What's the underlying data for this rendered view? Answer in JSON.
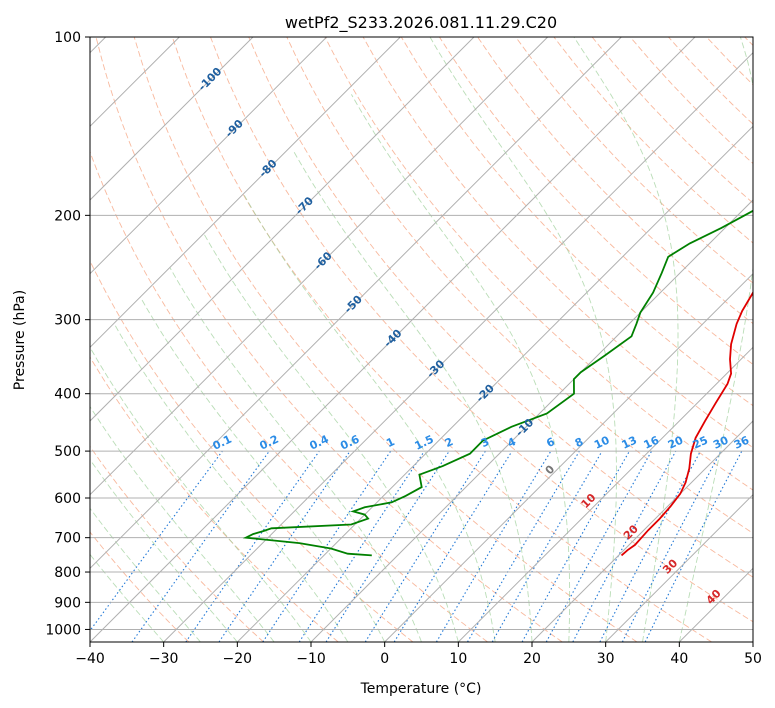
{
  "chart_data": {
    "type": "line",
    "subtype": "skew-T log-P diagram",
    "title": "wetPf2_S233.2026.081.11.29.C20",
    "xlabel": "Temperature (°C)",
    "ylabel": "Pressure (hPa)",
    "xlim": [
      -40,
      50
    ],
    "ylim": [
      1050,
      100
    ],
    "y_scale": "log",
    "x_ticks": [
      -40,
      -30,
      -20,
      -10,
      0,
      10,
      20,
      30,
      40,
      50
    ],
    "y_ticks": [
      100,
      200,
      300,
      400,
      500,
      600,
      700,
      800,
      900,
      1000
    ],
    "grid": true,
    "legend": "none",
    "series": [
      {
        "color": "#e00000",
        "points": [
          [
            20.4,
            750
          ],
          [
            20.5,
            735
          ],
          [
            20.8,
            720
          ],
          [
            20.7,
            700
          ],
          [
            20.6,
            680
          ],
          [
            20.6,
            650
          ],
          [
            20.4,
            620
          ],
          [
            20.0,
            590
          ],
          [
            19.2,
            565
          ],
          [
            17.8,
            535
          ],
          [
            16.0,
            505
          ],
          [
            14.5,
            475
          ],
          [
            13.5,
            445
          ],
          [
            12.5,
            415
          ],
          [
            11.5,
            385
          ],
          [
            10.6,
            370
          ],
          [
            8.5,
            350
          ],
          [
            6.6,
            330
          ],
          [
            4.6,
            305
          ],
          [
            3.6,
            290
          ],
          [
            2.3,
            265
          ],
          [
            1.2,
            240
          ],
          [
            -0.2,
            217
          ],
          [
            -1.8,
            200
          ],
          [
            -1.8,
            193
          ],
          [
            -0.9,
            185
          ],
          [
            0.7,
            176
          ],
          [
            1.0,
            170
          ],
          [
            0.9,
            163
          ],
          [
            1.9,
            152
          ],
          [
            3.6,
            140
          ],
          [
            5.0,
            131
          ],
          [
            5.8,
            125
          ],
          [
            7.2,
            118
          ],
          [
            8.0,
            112
          ],
          [
            9.9,
            100
          ]
        ]
      },
      {
        "color": "#008000",
        "points": [
          [
            -13.5,
            750
          ],
          [
            -17.0,
            745
          ],
          [
            -20.0,
            730
          ],
          [
            -25.0,
            715
          ],
          [
            -33.0,
            700
          ],
          [
            -32.5,
            690
          ],
          [
            -31.5,
            682
          ],
          [
            -30.8,
            675
          ],
          [
            -20.5,
            665
          ],
          [
            -19.0,
            650
          ],
          [
            -20.0,
            640
          ],
          [
            -22.0,
            632
          ],
          [
            -21.0,
            622
          ],
          [
            -18.0,
            610
          ],
          [
            -17.0,
            595
          ],
          [
            -16.0,
            575
          ],
          [
            -18.0,
            548
          ],
          [
            -16.0,
            530
          ],
          [
            -14.0,
            505
          ],
          [
            -14.0,
            480
          ],
          [
            -12.0,
            455
          ],
          [
            -9.0,
            432
          ],
          [
            -8.0,
            400
          ],
          [
            -10.0,
            378
          ],
          [
            -10.0,
            368
          ],
          [
            -9.0,
            345
          ],
          [
            -8.0,
            320
          ],
          [
            -9.0,
            305
          ],
          [
            -10.0,
            292
          ],
          [
            -11.0,
            270
          ],
          [
            -12.5,
            250
          ],
          [
            -13.8,
            235
          ],
          [
            -12.7,
            223
          ],
          [
            -10.5,
            210
          ],
          [
            -8.3,
            195
          ],
          [
            -6.2,
            181
          ],
          [
            -4.9,
            173
          ],
          [
            -2.6,
            160
          ],
          [
            -2.0,
            153
          ],
          [
            -1.4,
            140
          ],
          [
            -0.5,
            128
          ],
          [
            0.9,
            118
          ],
          [
            2.7,
            108
          ],
          [
            3.8,
            100
          ]
        ]
      }
    ],
    "isotherm_labels": [
      "-100",
      "-90",
      "-80",
      "-70",
      "-60",
      "-50",
      "-40",
      "-30",
      "-20",
      "-10"
    ],
    "mixing_ratio_labels": [
      "0.1",
      "0.2",
      "0.4",
      "0.6",
      "1",
      "1.5",
      "2",
      "3",
      "4",
      "6",
      "8",
      "10",
      "13",
      "16",
      "20",
      "25",
      "30",
      "36"
    ],
    "isotherm_labels_warm": [
      "10",
      "20",
      "30",
      "40"
    ],
    "zero_label": "0"
  }
}
